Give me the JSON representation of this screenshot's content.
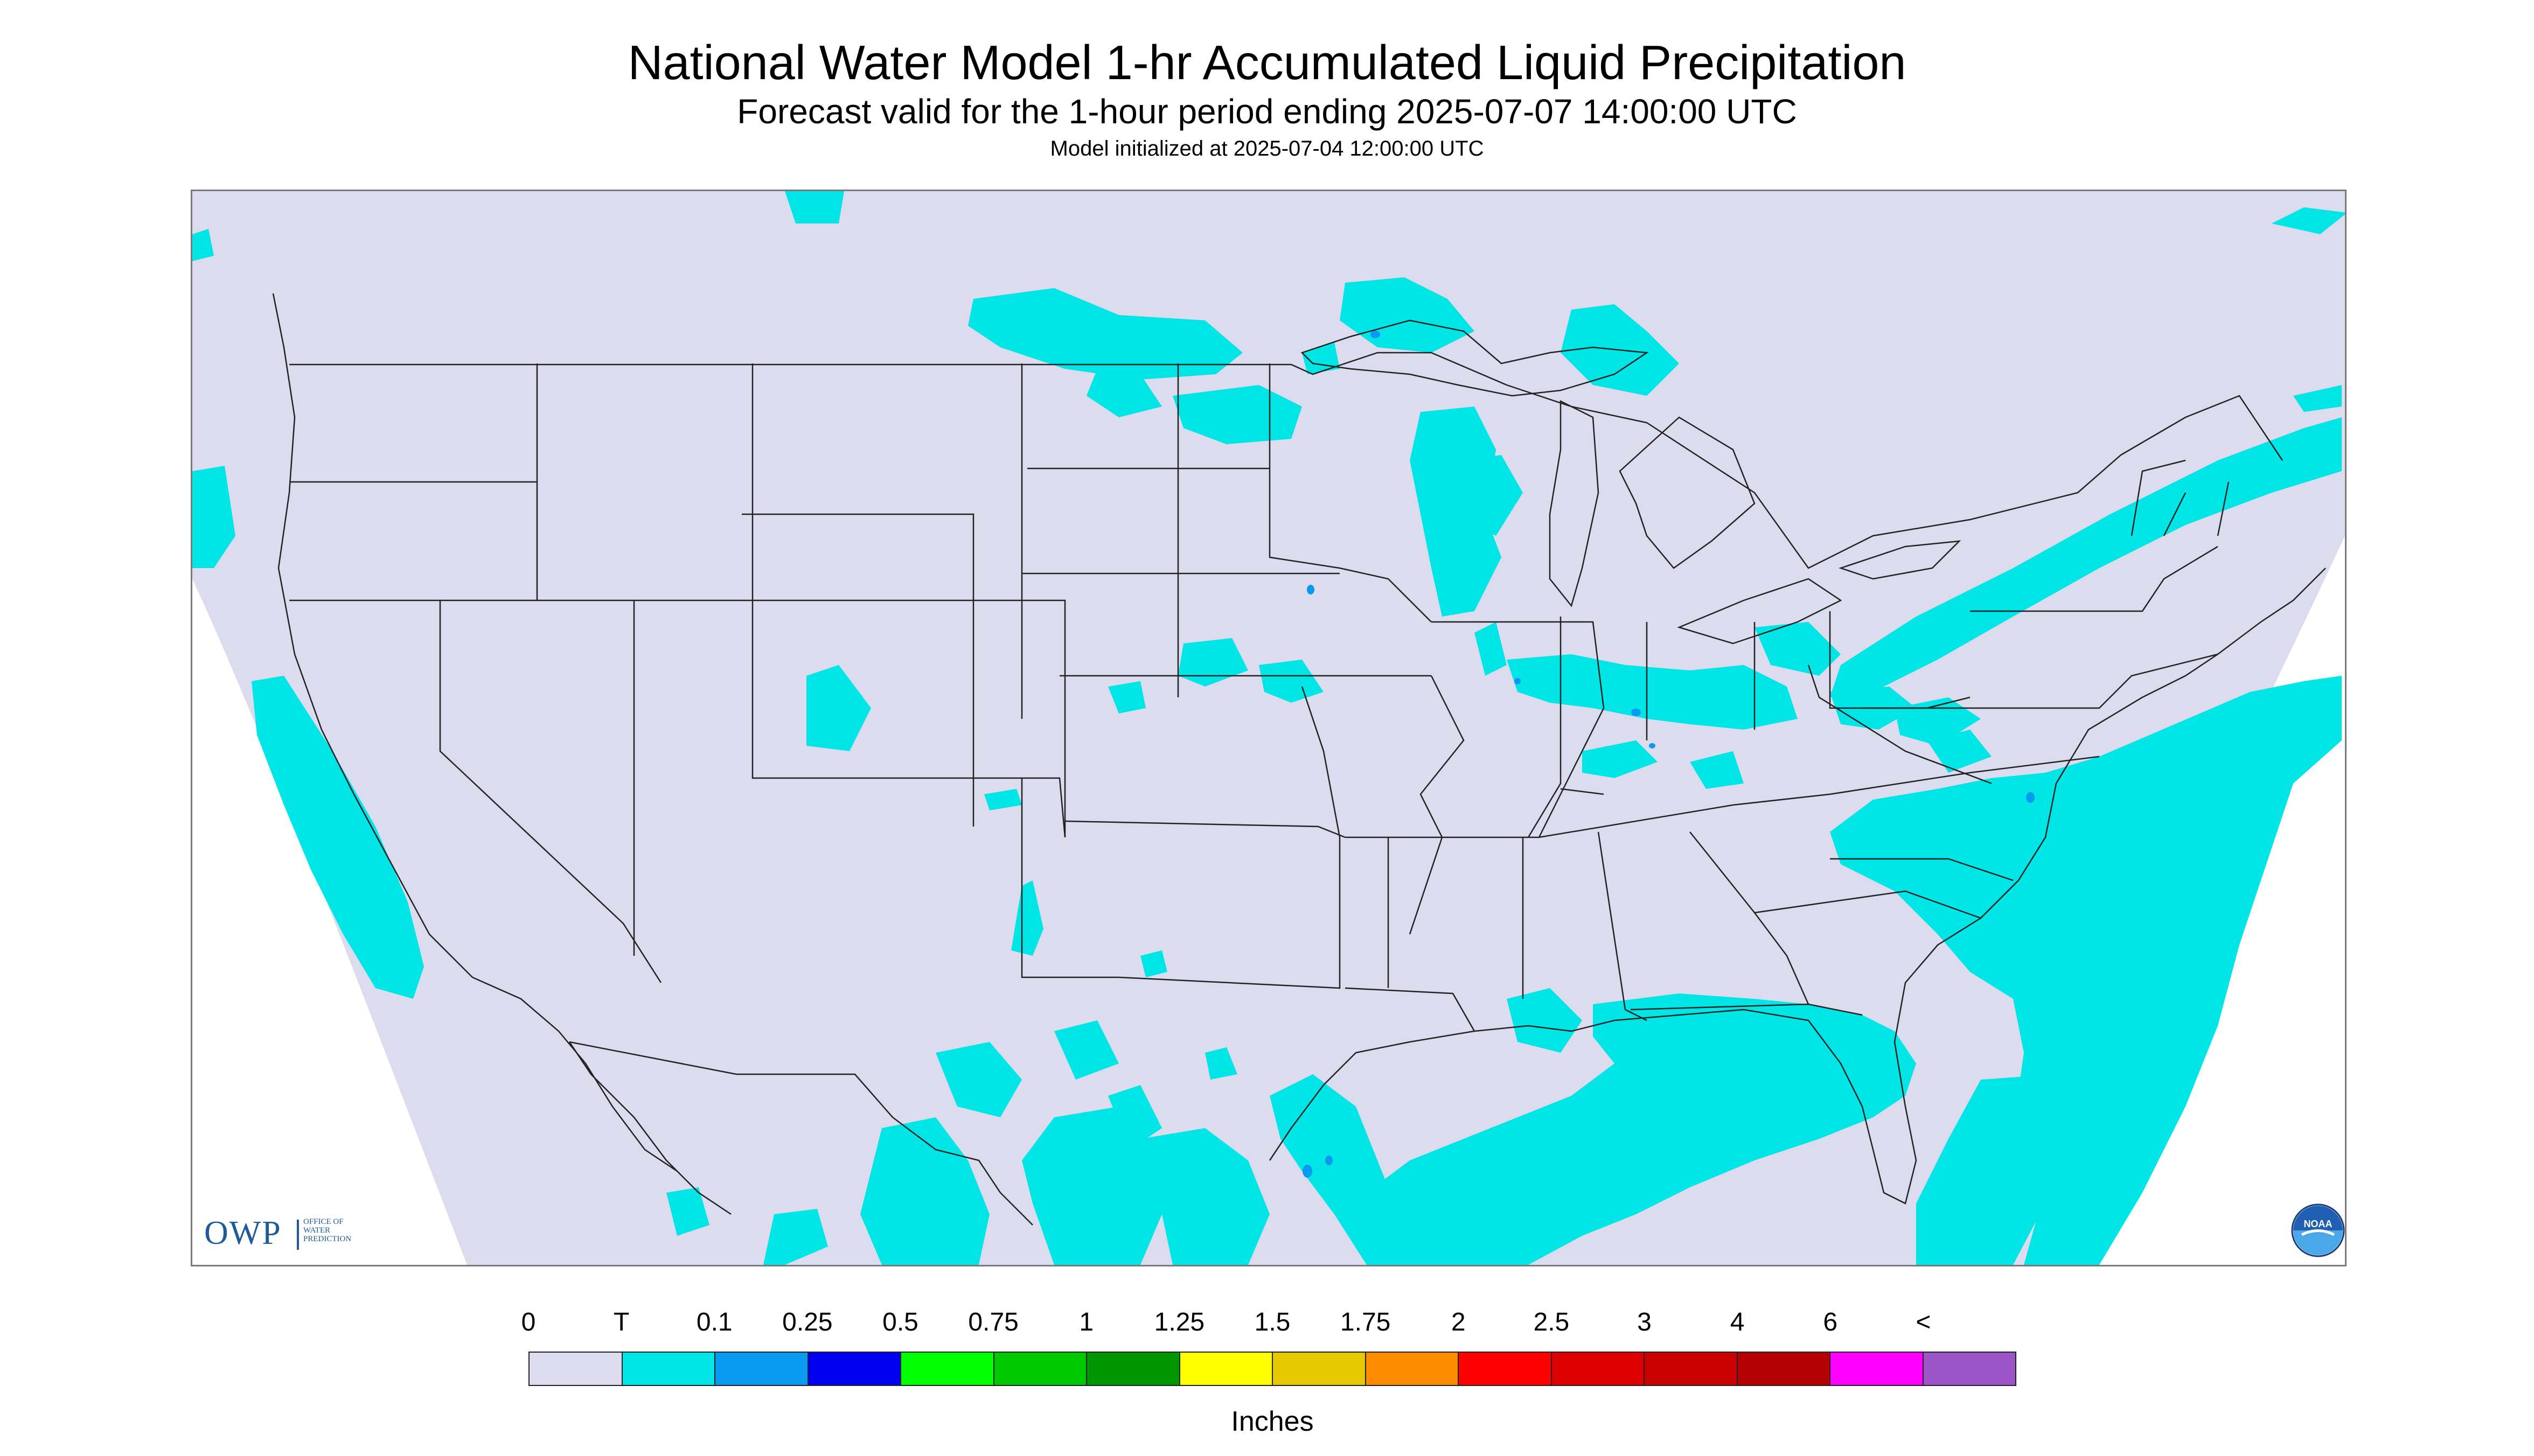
{
  "header": {
    "title": "National Water Model 1-hr Accumulated Liquid Precipitation",
    "subtitle": "Forecast valid for the 1-hour period ending 2025-07-07 14:00:00 UTC",
    "init_line": "Model initialized at 2025-07-04 12:00:00 UTC"
  },
  "logos": {
    "owp_letters": "OWP",
    "owp_subtext": "OFFICE OF\nWATER\nPREDICTION",
    "noaa_text": "NOAA"
  },
  "colors": {
    "background": "#dcdcee",
    "outside_domain": "#ffffff",
    "boundaries": "#222222",
    "light_precip": "#00e6e6",
    "moderate_precip": "#0a99f0"
  },
  "legend": {
    "units": "Inches",
    "ticks": [
      "0",
      "T",
      "0.1",
      "0.25",
      "0.5",
      "0.75",
      "1",
      "1.25",
      "1.5",
      "1.75",
      "2",
      "2.5",
      "3",
      "4",
      "6",
      "<"
    ],
    "colors": [
      "#dcdcee",
      "#00e6e6",
      "#0a99f0",
      "#0000f0",
      "#00ff00",
      "#00c800",
      "#009600",
      "#ffff00",
      "#e6c800",
      "#ff8c00",
      "#ff0000",
      "#dc0000",
      "#c80000",
      "#b40000",
      "#ff00ff",
      "#9b55c8"
    ]
  },
  "map_features": {
    "light_precip_areas": [
      "Northern Plains / North Dakota",
      "Lake Superior region",
      "Minnesota",
      "Iowa",
      "Illinois / Indiana",
      "Ohio Valley",
      "Great Lakes to New England band",
      "Atlantic coast and offshore",
      "Gulf Coast and Gulf of Mexico",
      "Northern Mexico",
      "Pacific coast of California",
      "Colorado / Kansas spots"
    ],
    "moderate_precip_areas": [
      "Gulf of Mexico",
      "Atlantic offshore",
      "Iowa",
      "Illinois"
    ]
  }
}
